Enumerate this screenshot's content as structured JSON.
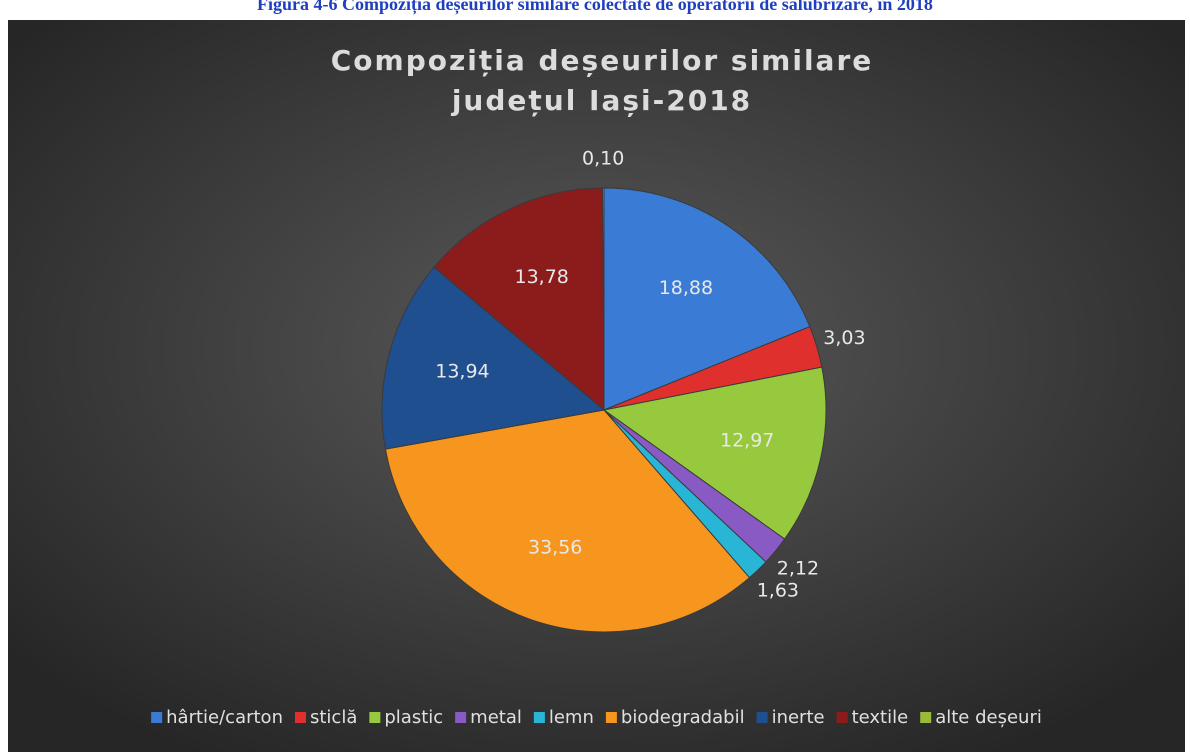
{
  "caption": "Figura 4-6 Compoziția deșeurilor similare colectate de operatorii de salubrizare, în 2018",
  "chart_data": {
    "type": "pie",
    "title": "Compoziția deșeurilor similare",
    "subtitle": "județul Iași-2018",
    "categories": [
      "hârtie/carton",
      "sticlă",
      "plastic",
      "metal",
      "lemn",
      "biodegradabil",
      "inerte",
      "textile",
      "alte deșeuri"
    ],
    "values": [
      18.88,
      3.03,
      12.97,
      2.12,
      1.63,
      33.56,
      13.94,
      13.78,
      0.1
    ],
    "value_labels": [
      "18,88",
      "3,03",
      "12,97",
      "2,12",
      "1,63",
      "33,56",
      "13,94",
      "13,78",
      "0,10"
    ],
    "colors": [
      "#3a7bd5",
      "#e0302e",
      "#96c93d",
      "#8a5ac4",
      "#29b6d6",
      "#f7961e",
      "#1f4f8f",
      "#8c1c1c",
      "#9cba3a"
    ],
    "legend": "bottom"
  }
}
